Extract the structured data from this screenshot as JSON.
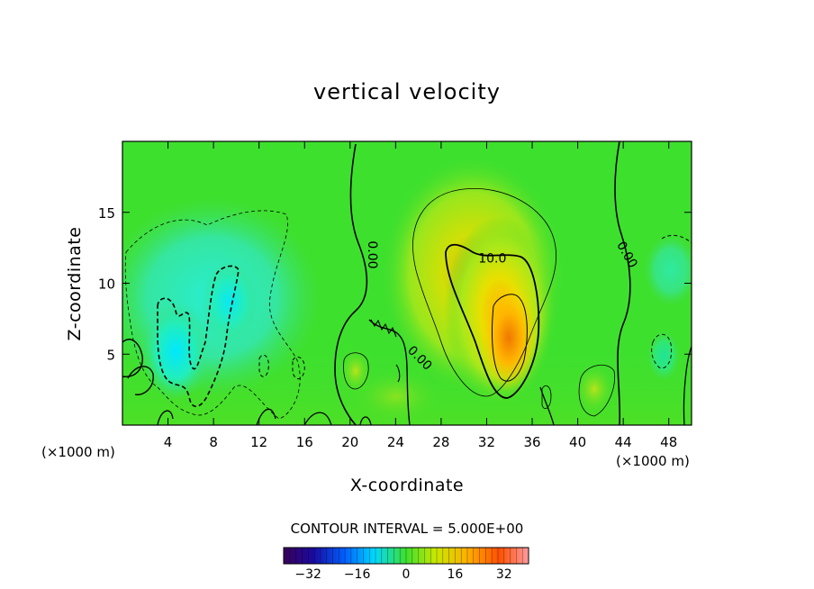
{
  "chart_data": {
    "type": "heatmap",
    "title": "vertical velocity",
    "xlabel": "X-coordinate",
    "ylabel": "Z-coordinate",
    "x_unit": "(×1000 m)",
    "xlim": [
      0,
      50
    ],
    "ylim": [
      0,
      20
    ],
    "x_ticks": [
      4,
      8,
      12,
      16,
      20,
      24,
      28,
      32,
      36,
      40,
      44,
      48
    ],
    "y_ticks": [
      5,
      10,
      15
    ],
    "contour_interval_text": "CONTOUR INTERVAL = 5.000E+00",
    "contour_labels": [
      {
        "text": "0.00",
        "x": 21.9,
        "y": 12.0,
        "rotation": 90
      },
      {
        "text": "10.0",
        "x": 32.5,
        "y": 11.7,
        "rotation": 0
      },
      {
        "text": "0.00",
        "x": 26.1,
        "y": 4.7,
        "rotation": 45
      },
      {
        "text": "0.00",
        "x": 44.3,
        "y": 12.0,
        "rotation": 60
      }
    ],
    "colorbar": {
      "range": [
        -40,
        40
      ],
      "ticks": [
        -32,
        -16,
        0,
        16,
        32
      ]
    },
    "features": [
      {
        "type": "updraft-max",
        "x": 34,
        "y": 6.5,
        "value": 22
      },
      {
        "type": "downdraft-min",
        "x": 5,
        "y": 5,
        "value": -14
      }
    ],
    "colors": {
      "background_field": "#3ee02e",
      "positive_peak": "#ff9a00",
      "negative_peak": "#00e2ff"
    }
  }
}
